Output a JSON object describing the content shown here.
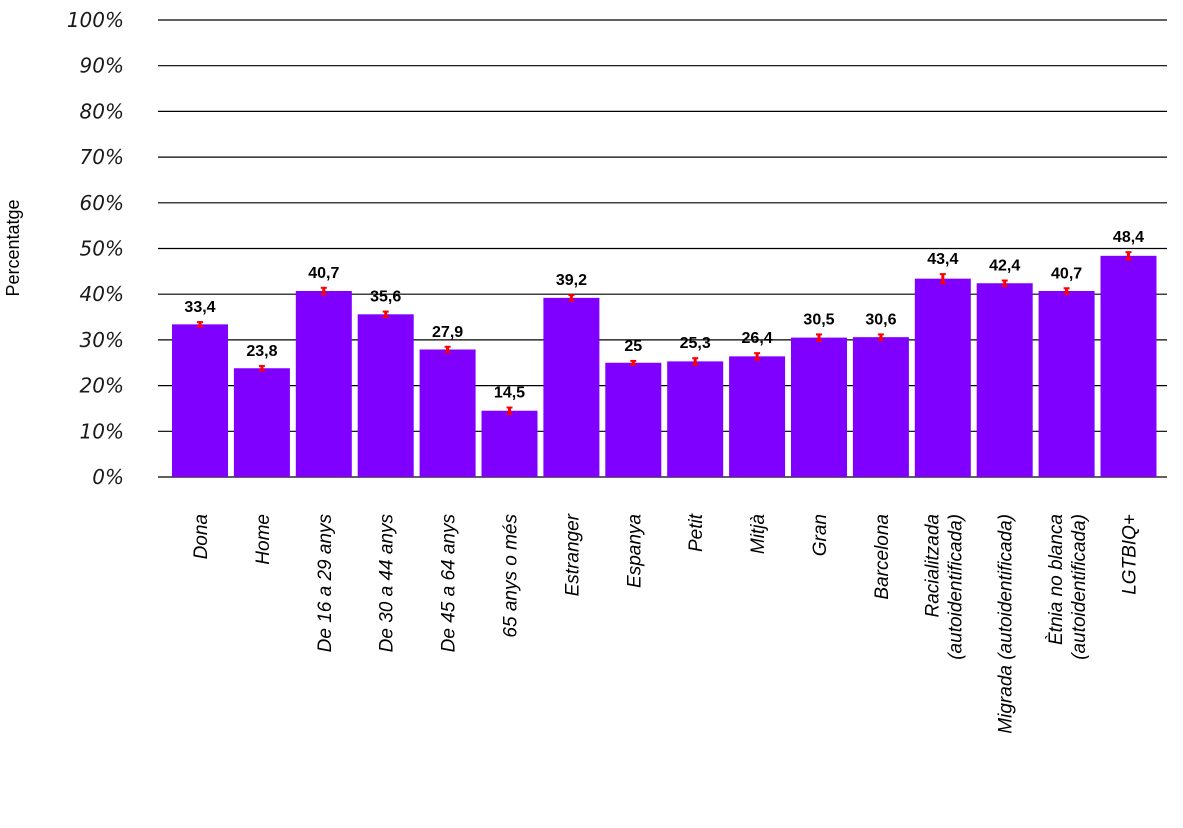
{
  "chart_data": {
    "type": "bar",
    "title": "",
    "xlabel": "",
    "ylabel": "Percentatge",
    "ylim": [
      0,
      100
    ],
    "yticks": [
      "0%",
      "10%",
      "20%",
      "30%",
      "40%",
      "50%",
      "60%",
      "70%",
      "80%",
      "90%",
      "100%"
    ],
    "grid": true,
    "legend": "none",
    "categories": [
      [
        "Dona"
      ],
      [
        "Home"
      ],
      [
        "De 16 a 29 anys"
      ],
      [
        "De 30 a 44 anys"
      ],
      [
        "De 45 a 64 anys"
      ],
      [
        "65 anys o més"
      ],
      [
        "Estranger"
      ],
      [
        "Espanya"
      ],
      [
        "Petit"
      ],
      [
        "Mitjà"
      ],
      [
        "Gran"
      ],
      [
        "Barcelona"
      ],
      [
        "Racialitzada",
        "(autoidentificada)"
      ],
      [
        "Migrada (autoidentificada)"
      ],
      [
        "Ètnia no blanca",
        "(autoidentificada)"
      ],
      [
        "LGTBIQ+"
      ]
    ],
    "values": [
      33.4,
      23.8,
      40.7,
      35.6,
      27.9,
      14.5,
      39.2,
      25,
      25.3,
      26.4,
      30.5,
      30.6,
      43.4,
      42.4,
      40.7,
      48.4
    ],
    "value_labels": [
      "33,4",
      "23,8",
      "40,7",
      "35,6",
      "27,9",
      "14,5",
      "39,2",
      "25",
      "25,3",
      "26,4",
      "30,5",
      "30,6",
      "43,4",
      "42,4",
      "40,7",
      "48,4"
    ],
    "error_low": [
      32.9,
      23.3,
      40.0,
      35.0,
      27.3,
      13.8,
      38.6,
      24.6,
      24.6,
      25.7,
      29.8,
      30.0,
      42.4,
      41.8,
      40.1,
      47.6
    ],
    "error_high": [
      33.9,
      24.3,
      41.4,
      36.2,
      28.5,
      15.2,
      39.8,
      25.4,
      26.0,
      27.1,
      31.2,
      31.2,
      44.4,
      43.0,
      41.3,
      49.2
    ],
    "colors": {
      "bar": "#8000ff",
      "error": "#ff0000",
      "grid": "#000000"
    }
  }
}
